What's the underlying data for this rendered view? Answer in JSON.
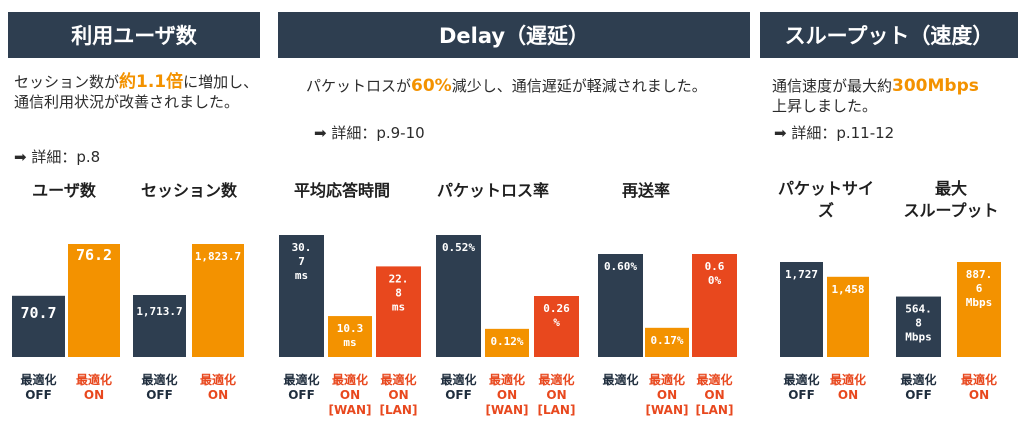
{
  "headers": {
    "users": "利用ユーザ数",
    "delay": "Delay（遅延）",
    "throughput": "スループット（速度）"
  },
  "descriptions": {
    "users": {
      "pre": "セッション数が",
      "highlight": "約1.1倍",
      "post": "に増加し、通信利用状況が改善されました。"
    },
    "delay": {
      "pre": "パケットロスが",
      "highlight": "60%",
      "post": "減少し、通信遅延が軽減されました。"
    },
    "throughput": {
      "pre": "通信速度が最大約",
      "highlight": "300Mbps",
      "post": "上昇しました。"
    }
  },
  "refs": {
    "users": "➡ 詳細：p.8",
    "delay": "➡ 詳細：p.9-10",
    "throughput": "➡ 詳細：p.11-12"
  },
  "colors": {
    "header_bg": "#2e3e50",
    "navy": "#2e3e50",
    "orange": "#f39200",
    "red": "#e8481e",
    "highlight": "#f39200"
  },
  "chart_data": [
    {
      "type": "bar",
      "title": "ユーザ数",
      "categories": [
        "最適化\nOFF",
        "最適化\nON"
      ],
      "values": [
        70.7,
        76.2
      ],
      "labels": [
        "70.7",
        "76.2"
      ],
      "colors": [
        "navy",
        "orange"
      ]
    },
    {
      "type": "bar",
      "title": "セッション数",
      "categories": [
        "最適化\nOFF",
        "最適化\nON"
      ],
      "values": [
        1713.7,
        1823.7
      ],
      "labels": [
        "1,713.7",
        "1,823.7"
      ],
      "colors": [
        "navy",
        "orange"
      ]
    },
    {
      "type": "bar",
      "title": "平均応答時間",
      "categories": [
        "最適化\nOFF",
        "最適化\nON\n[WAN]",
        "最適化\nON\n[LAN]"
      ],
      "values": [
        30.7,
        10.3,
        22.8
      ],
      "labels": [
        "30.\n7\nms",
        "10.3\nms",
        "22.\n8\nms"
      ],
      "colors": [
        "navy",
        "orange",
        "red"
      ]
    },
    {
      "type": "bar",
      "title": "パケットロス率",
      "categories": [
        "最適化\nOFF",
        "最適化\nON\n[WAN]",
        "最適化\nON\n[LAN]"
      ],
      "values": [
        0.52,
        0.12,
        0.26
      ],
      "labels": [
        "0.52%",
        "0.12%",
        "0.26\n%"
      ],
      "colors": [
        "navy",
        "orange",
        "red"
      ]
    },
    {
      "type": "bar",
      "title": "再送率",
      "categories": [
        "最適化",
        "最適化\nON\n[WAN]",
        "最適化\nON\n[LAN]"
      ],
      "values": [
        0.6,
        0.17,
        0.6
      ],
      "labels": [
        "0.60%",
        "0.17%",
        "0.6\n0%"
      ],
      "colors": [
        "navy",
        "orange",
        "red"
      ]
    },
    {
      "type": "bar",
      "title": "パケットサイ\nズ",
      "categories": [
        "最適化\nOFF",
        "最適化\nON"
      ],
      "values": [
        1727,
        1458
      ],
      "labels": [
        "1,727",
        "1,458"
      ],
      "colors": [
        "navy",
        "orange"
      ]
    },
    {
      "type": "bar",
      "title": "最大\nスループット",
      "categories": [
        "最適化\nOFF",
        "最適化\nON"
      ],
      "values": [
        564.8,
        887.6
      ],
      "labels": [
        "564.\n8\nMbps",
        "887.\n6\nMbps"
      ],
      "colors": [
        "navy",
        "orange"
      ]
    }
  ]
}
